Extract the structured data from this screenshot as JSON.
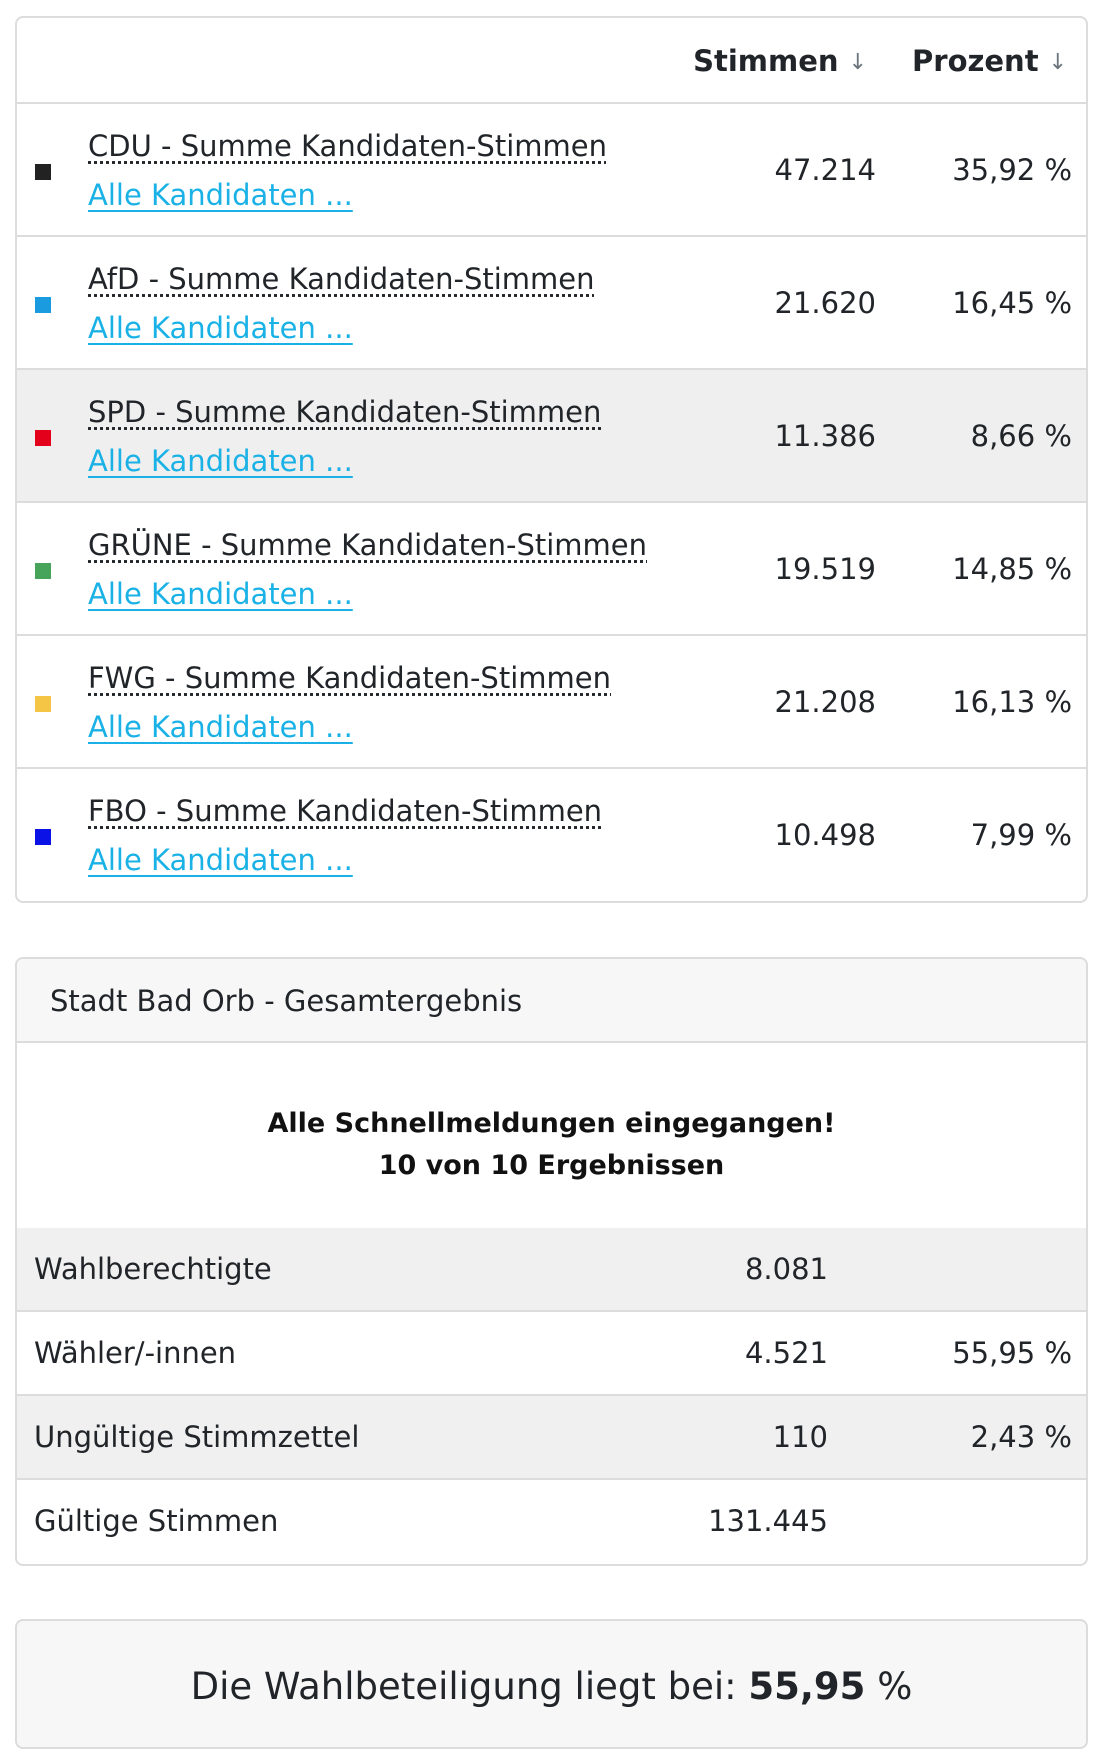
{
  "results_table": {
    "col_stimmen": "Stimmen",
    "col_prozent": "Prozent",
    "sort_icon": "↓",
    "rows": [
      {
        "name": "CDU - Summe Kandidaten-Stimmen",
        "link": "Alle Kandidaten ...",
        "votes": "47.214",
        "percent": "35,92 %",
        "color": "#222222"
      },
      {
        "name": "AfD - Summe Kandidaten-Stimmen",
        "link": "Alle Kandidaten ...",
        "votes": "21.620",
        "percent": "16,45 %",
        "color": "#1a9be0"
      },
      {
        "name": "SPD - Summe Kandidaten-Stimmen",
        "link": "Alle Kandidaten ...",
        "votes": "11.386",
        "percent": "8,66 %",
        "color": "#e3001b"
      },
      {
        "name": "GRÜNE - Summe Kandidaten-Stimmen",
        "link": "Alle Kandidaten ...",
        "votes": "19.519",
        "percent": "14,85 %",
        "color": "#46a35a"
      },
      {
        "name": "FWG - Summe Kandidaten-Stimmen",
        "link": "Alle Kandidaten ...",
        "votes": "21.208",
        "percent": "16,13 %",
        "color": "#f5c545"
      },
      {
        "name": "FBO - Summe Kandidaten-Stimmen",
        "link": "Alle Kandidaten ...",
        "votes": "10.498",
        "percent": "7,99 %",
        "color": "#0a12e6"
      }
    ]
  },
  "summary": {
    "title": "Stadt Bad Orb - Gesamtergebnis",
    "notice_line1": "Alle Schnellmeldungen eingegangen!",
    "notice_line2": "10 von 10 Ergebnissen",
    "stats": [
      {
        "label": "Wahlberechtigte",
        "value": "8.081",
        "percent": ""
      },
      {
        "label": "Wähler/-innen",
        "value": "4.521",
        "percent": "55,95 %"
      },
      {
        "label": "Ungültige Stimmzettel",
        "value": "110",
        "percent": "2,43 %"
      },
      {
        "label": "Gültige Stimmen",
        "value": "131.445",
        "percent": ""
      }
    ]
  },
  "turnout": {
    "prefix": "Die Wahlbeteiligung liegt bei:",
    "value": "55,95",
    "suffix": "%"
  }
}
